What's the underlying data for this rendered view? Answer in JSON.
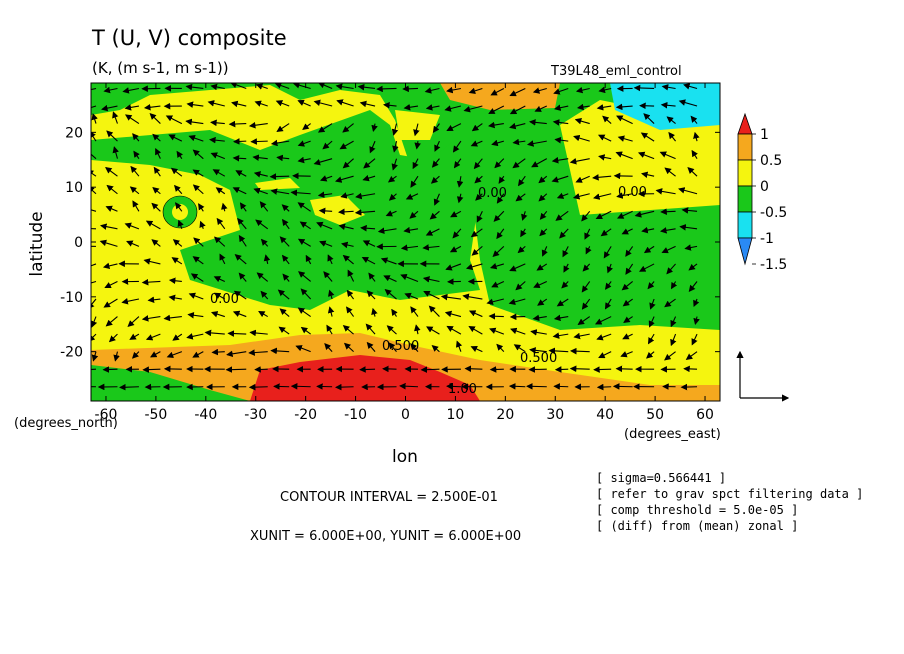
{
  "chart_data": {
    "type": "heatmap",
    "title": "T (U, V) composite",
    "subtitle": "(K, (m s-1, m s-1))",
    "run_label": "T39L48_eml_control",
    "xlabel": "lon",
    "ylabel": "latitude",
    "x_unit_label": "(degrees_east)",
    "y_unit_label": "(degrees_north)",
    "xlim": [
      -63,
      63
    ],
    "ylim": [
      -29,
      29
    ],
    "xticks": [
      -60,
      -50,
      -40,
      -30,
      -20,
      -10,
      0,
      10,
      20,
      30,
      40,
      50,
      60
    ],
    "yticks": [
      -20,
      -10,
      0,
      10,
      20
    ],
    "colorbar": {
      "levels": [
        1,
        0.5,
        0,
        -0.5,
        -1,
        -1.5
      ],
      "level_labels": [
        "1",
        "0.5",
        "0",
        "-0.5",
        "-1",
        "-1.5"
      ],
      "colors": [
        "#e8201c",
        "#f5a81e",
        "#f5f50f",
        "#1ac81a",
        "#19e1f0",
        "#2a8af5"
      ]
    },
    "contour_labels": [
      "0.00",
      "0.00",
      "0.500",
      "1.00",
      "0.500",
      "0.00"
    ],
    "contour_interval_text": "CONTOUR INTERVAL = 2.500E-01",
    "vector_unit_text": "XUNIT = 6.000E+00, YUNIT = 6.000E+00",
    "notes": [
      "[ sigma=0.566441 ]",
      "[ refer to grav spct filtering data ]",
      "[ comp threshold = 5.0e-05 ]",
      "[ (diff) from (mean) zonal ]"
    ]
  }
}
